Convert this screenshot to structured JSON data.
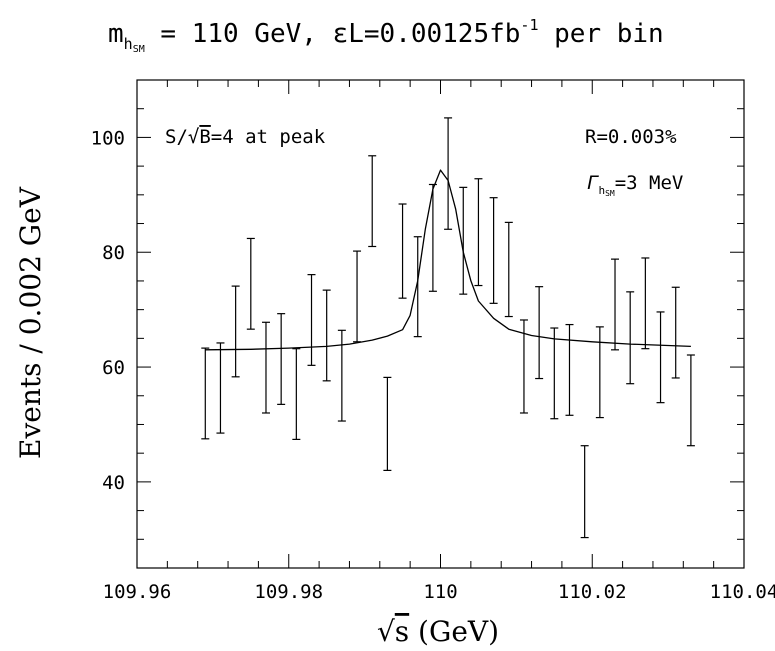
{
  "chart_data": {
    "type": "scatter",
    "title_parts": {
      "m": "m",
      "h": "h",
      "sm": "SM",
      "rest": " = 110 GeV, εL=0.00125fb",
      "sup": "-1",
      "tail": " per bin"
    },
    "xlabel": "√s (GeV)",
    "xlabel_parts": {
      "root": "√",
      "s": "s",
      "unit": " (GeV)"
    },
    "ylabel": "Events / 0.002 GeV",
    "xlim": [
      109.96,
      110.04
    ],
    "ylim": [
      25,
      110
    ],
    "x_ticks": [
      109.96,
      109.98,
      110,
      110.02,
      110.04
    ],
    "x_tick_labels": [
      "109.96",
      "109.98",
      "110",
      "110.02",
      "110.04"
    ],
    "y_ticks": [
      40,
      60,
      80,
      100
    ],
    "y_tick_labels": [
      "40",
      "60",
      "80",
      "100"
    ],
    "annotations": {
      "significance": {
        "pre": "S/",
        "root": "√",
        "b": "B",
        "post": "=4 at peak"
      },
      "ratio": "R=0.003%",
      "width": {
        "gamma": "Γ",
        "h": "h",
        "sm": "SM",
        "val": "=3 MeV"
      }
    },
    "series": [
      {
        "type": "errorbar",
        "points": [
          {
            "x": 109.969,
            "lo": 47.5,
            "hi": 63.3
          },
          {
            "x": 109.971,
            "lo": 48.5,
            "hi": 64.2
          },
          {
            "x": 109.973,
            "lo": 58.3,
            "hi": 74.1
          },
          {
            "x": 109.975,
            "lo": 66.6,
            "hi": 82.4
          },
          {
            "x": 109.977,
            "lo": 52.0,
            "hi": 67.8
          },
          {
            "x": 109.979,
            "lo": 53.5,
            "hi": 69.3
          },
          {
            "x": 109.981,
            "lo": 47.4,
            "hi": 63.2
          },
          {
            "x": 109.983,
            "lo": 60.3,
            "hi": 76.1
          },
          {
            "x": 109.985,
            "lo": 57.6,
            "hi": 73.4
          },
          {
            "x": 109.987,
            "lo": 50.6,
            "hi": 66.4
          },
          {
            "x": 109.989,
            "lo": 64.4,
            "hi": 80.2
          },
          {
            "x": 109.991,
            "lo": 81.0,
            "hi": 96.8
          },
          {
            "x": 109.993,
            "lo": 42.0,
            "hi": 58.2
          },
          {
            "x": 109.995,
            "lo": 72.0,
            "hi": 88.4
          },
          {
            "x": 109.997,
            "lo": 65.3,
            "hi": 82.7
          },
          {
            "x": 109.999,
            "lo": 73.2,
            "hi": 91.8
          },
          {
            "x": 110.001,
            "lo": 84.0,
            "hi": 103.4
          },
          {
            "x": 110.003,
            "lo": 72.7,
            "hi": 91.3
          },
          {
            "x": 110.005,
            "lo": 74.2,
            "hi": 92.8
          },
          {
            "x": 110.007,
            "lo": 71.1,
            "hi": 89.5
          },
          {
            "x": 110.009,
            "lo": 68.8,
            "hi": 85.2
          },
          {
            "x": 110.011,
            "lo": 52.0,
            "hi": 68.2
          },
          {
            "x": 110.013,
            "lo": 58.0,
            "hi": 74.0
          },
          {
            "x": 110.015,
            "lo": 51.0,
            "hi": 66.8
          },
          {
            "x": 110.017,
            "lo": 51.6,
            "hi": 67.4
          },
          {
            "x": 110.019,
            "lo": 30.3,
            "hi": 46.3
          },
          {
            "x": 110.021,
            "lo": 51.2,
            "hi": 67.0
          },
          {
            "x": 110.023,
            "lo": 63.0,
            "hi": 78.8
          },
          {
            "x": 110.025,
            "lo": 57.1,
            "hi": 73.1
          },
          {
            "x": 110.027,
            "lo": 63.2,
            "hi": 79.0
          },
          {
            "x": 110.029,
            "lo": 53.8,
            "hi": 69.6
          },
          {
            "x": 110.031,
            "lo": 58.1,
            "hi": 73.9
          },
          {
            "x": 110.033,
            "lo": 46.3,
            "hi": 62.1
          }
        ]
      },
      {
        "type": "line",
        "x": [
          109.969,
          109.975,
          109.98,
          109.985,
          109.988,
          109.991,
          109.993,
          109.995,
          109.996,
          109.997,
          109.998,
          109.999,
          110.0,
          110.001,
          110.002,
          110.003,
          110.004,
          110.005,
          110.007,
          110.009,
          110.012,
          110.015,
          110.02,
          110.025,
          110.033
        ],
        "y": [
          63.0,
          63.1,
          63.3,
          63.6,
          64.0,
          64.7,
          65.4,
          66.5,
          69.0,
          75.0,
          84.0,
          91.0,
          94.3,
          92.5,
          87.5,
          80.0,
          75.0,
          71.5,
          68.5,
          66.6,
          65.5,
          64.9,
          64.4,
          64.0,
          63.6
        ]
      }
    ]
  }
}
